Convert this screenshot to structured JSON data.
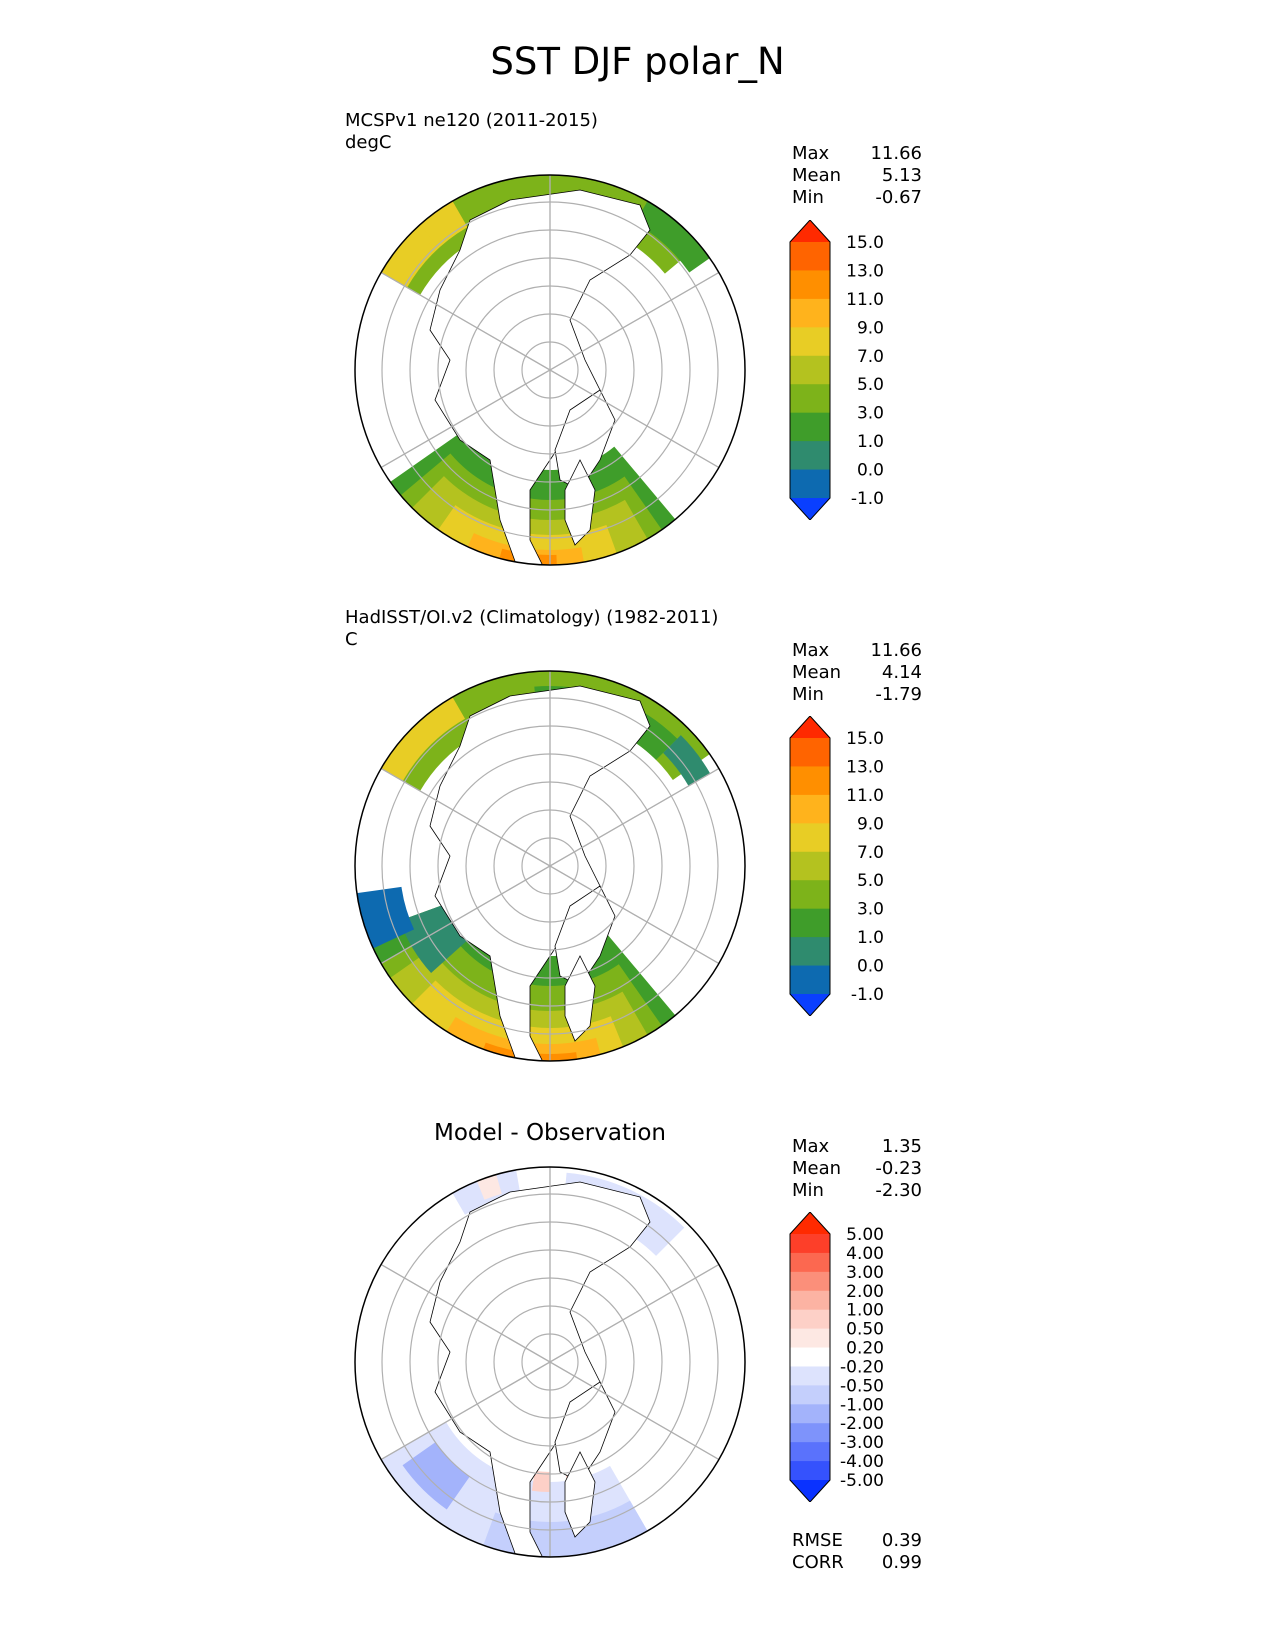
{
  "title": "SST DJF polar_N",
  "panels": [
    {
      "title_lines": [
        "MCSPv1 ne120 (2011-2015)",
        "degC"
      ],
      "stats": [
        {
          "label": "Max",
          "value": "11.66"
        },
        {
          "label": "Mean",
          "value": "5.13"
        },
        {
          "label": "Min",
          "value": "-0.67"
        }
      ],
      "colorbar": {
        "levels": [
          "15.0",
          "13.0",
          "11.0",
          "9.0",
          "7.0",
          "5.0",
          "3.0",
          "1.0",
          "0.0",
          "-1.0"
        ],
        "colors": [
          "#ff2a00",
          "#ff6400",
          "#ff8f00",
          "#ffb31c",
          "#e8cd25",
          "#b4c21f",
          "#7db31a",
          "#3f9d2a",
          "#2f8b6e",
          "#0d6ab0",
          "#0a3fff"
        ]
      }
    },
    {
      "title_lines": [
        "HadISST/OI.v2 (Climatology) (1982-2011)",
        "C"
      ],
      "stats": [
        {
          "label": "Max",
          "value": "11.66"
        },
        {
          "label": "Mean",
          "value": "4.14"
        },
        {
          "label": "Min",
          "value": "-1.79"
        }
      ],
      "colorbar": {
        "levels": [
          "15.0",
          "13.0",
          "11.0",
          "9.0",
          "7.0",
          "5.0",
          "3.0",
          "1.0",
          "0.0",
          "-1.0"
        ],
        "colors": [
          "#ff2a00",
          "#ff6400",
          "#ff8f00",
          "#ffb31c",
          "#e8cd25",
          "#b4c21f",
          "#7db31a",
          "#3f9d2a",
          "#2f8b6e",
          "#0d6ab0",
          "#0a3fff"
        ]
      }
    },
    {
      "title": "Model - Observation",
      "stats": [
        {
          "label": "Max",
          "value": "1.35"
        },
        {
          "label": "Mean",
          "value": "-0.23"
        },
        {
          "label": "Min",
          "value": "-2.30"
        }
      ],
      "extra_stats": [
        {
          "label": "RMSE",
          "value": "0.39"
        },
        {
          "label": "CORR",
          "value": "0.99"
        }
      ],
      "colorbar": {
        "levels": [
          "5.00",
          "4.00",
          "3.00",
          "2.00",
          "1.00",
          "0.50",
          "0.20",
          "-0.20",
          "-0.50",
          "-1.00",
          "-2.00",
          "-3.00",
          "-4.00",
          "-5.00"
        ],
        "colors": [
          "#ff2a00",
          "#fd3f29",
          "#fc6850",
          "#fb8f7a",
          "#fcb3a3",
          "#fdd0c7",
          "#fde8e3",
          "#ffffff",
          "#dde3fd",
          "#c4cffc",
          "#a3b3fb",
          "#7e93fb",
          "#5a72fc",
          "#3552fd",
          "#0a32ff"
        ]
      }
    }
  ],
  "chart_data": [
    {
      "type": "heatmap",
      "title": "MCSPv1 ne120 (2011-2015)",
      "units": "degC",
      "projection": "north polar stereographic",
      "colorbar_levels": [
        -1.0,
        0.0,
        1.0,
        3.0,
        5.0,
        7.0,
        9.0,
        11.0,
        13.0,
        15.0
      ],
      "max": 11.66,
      "mean": 5.13,
      "min": -0.67
    },
    {
      "type": "heatmap",
      "title": "HadISST/OI.v2 (Climatology) (1982-2011)",
      "units": "C",
      "projection": "north polar stereographic",
      "colorbar_levels": [
        -1.0,
        0.0,
        1.0,
        3.0,
        5.0,
        7.0,
        9.0,
        11.0,
        13.0,
        15.0
      ],
      "max": 11.66,
      "mean": 4.14,
      "min": -1.79
    },
    {
      "type": "heatmap",
      "title": "Model - Observation",
      "projection": "north polar stereographic",
      "colorbar_levels": [
        -5.0,
        -4.0,
        -3.0,
        -2.0,
        -1.0,
        -0.5,
        -0.2,
        0.2,
        0.5,
        1.0,
        2.0,
        3.0,
        4.0,
        5.0
      ],
      "max": 1.35,
      "mean": -0.23,
      "min": -2.3,
      "rmse": 0.39,
      "corr": 0.99
    }
  ]
}
